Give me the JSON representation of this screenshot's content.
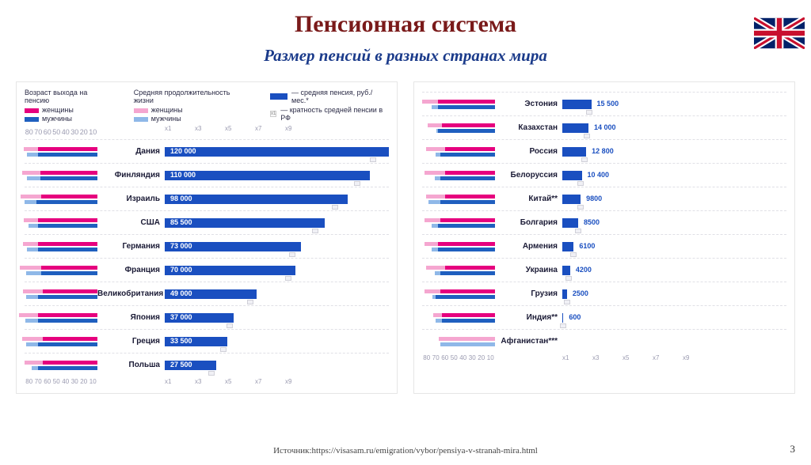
{
  "title": {
    "text": "Пенсионная система",
    "color": "#7a1a1a",
    "fontsize": 30
  },
  "subtitle": {
    "text": "Размер пенсий в разных странах мира",
    "color": "#1a3a8a",
    "fontsize": 21
  },
  "flag": {
    "name": "uk-flag",
    "bg": "#012169",
    "red": "#C8102E",
    "white": "#ffffff"
  },
  "colors": {
    "women_dark": "#e6007e",
    "women_light": "#f5a6d0",
    "men_dark": "#1f5fbf",
    "men_light": "#8fb8e8",
    "pension_bar": "#1a4fc0",
    "panel_border": "#e6e6e6",
    "mult_box": "#f0f0f5",
    "axis_text": "#9a9ab0"
  },
  "legend": {
    "age_title": "Возраст выхода на пенсию",
    "life_title": "Средняя продолжительность жизни",
    "women": "женщины",
    "men": "мужчины",
    "pension": "— средняя пенсия, руб./мес.*",
    "mult": "— кратность средней пенсии в РФ"
  },
  "age_axis": [
    "80",
    "70",
    "60",
    "50",
    "40",
    "30",
    "20",
    "10"
  ],
  "mult_axis": [
    "x1",
    "x3",
    "x5",
    "x7",
    "x9"
  ],
  "age_max": 80,
  "left_panel": {
    "pension_max": 120000,
    "rows": [
      {
        "country": "Дания",
        "pension": 120000,
        "label": "120 000",
        "mult": 9.3,
        "w_ret": 65,
        "m_ret": 65,
        "w_life": 81,
        "m_life": 77
      },
      {
        "country": "Финляндия",
        "pension": 110000,
        "label": "110 000",
        "mult": 8.6,
        "w_ret": 63,
        "m_ret": 63,
        "w_life": 83,
        "m_life": 77
      },
      {
        "country": "Израиль",
        "pension": 98000,
        "label": "98 000",
        "mult": 7.6,
        "w_ret": 62,
        "m_ret": 67,
        "w_life": 84,
        "m_life": 80
      },
      {
        "country": "США",
        "pension": 85500,
        "label": "85 500",
        "mult": 6.7,
        "w_ret": 65,
        "m_ret": 65,
        "w_life": 81,
        "m_life": 76
      },
      {
        "country": "Германия",
        "pension": 73000,
        "label": "73 000",
        "mult": 5.7,
        "w_ret": 65,
        "m_ret": 65,
        "w_life": 82,
        "m_life": 77
      },
      {
        "country": "Франция",
        "pension": 70000,
        "label": "70 000",
        "mult": 5.5,
        "w_ret": 62,
        "m_ret": 62,
        "w_life": 85,
        "m_life": 78
      },
      {
        "country": "Великобритания",
        "pension": 49000,
        "label": "49 000",
        "mult": 3.8,
        "w_ret": 60,
        "m_ret": 65,
        "w_life": 82,
        "m_life": 78
      },
      {
        "country": "Япония",
        "pension": 37000,
        "label": "37 000",
        "mult": 2.9,
        "w_ret": 65,
        "m_ret": 65,
        "w_life": 86,
        "m_life": 79
      },
      {
        "country": "Греция",
        "pension": 33500,
        "label": "33 500",
        "mult": 2.6,
        "w_ret": 60,
        "m_ret": 65,
        "w_life": 83,
        "m_life": 78
      },
      {
        "country": "Польша",
        "pension": 27500,
        "label": "27 500",
        "mult": 2.1,
        "w_ret": 60,
        "m_ret": 65,
        "w_life": 80,
        "m_life": 72
      }
    ]
  },
  "right_panel": {
    "pension_max": 120000,
    "rows": [
      {
        "country": "Эстония",
        "pension": 15500,
        "label": "15 500",
        "mult": 1.2,
        "w_ret": 63,
        "m_ret": 63,
        "w_life": 80,
        "m_life": 70
      },
      {
        "country": "Казахстан",
        "pension": 14000,
        "label": "14 000",
        "mult": 1.1,
        "w_ret": 58,
        "m_ret": 63,
        "w_life": 74,
        "m_life": 64
      },
      {
        "country": "Россия",
        "pension": 12800,
        "label": "12 800",
        "mult": 1.0,
        "w_ret": 55,
        "m_ret": 60,
        "w_life": 76,
        "m_life": 65
      },
      {
        "country": "Белоруссия",
        "pension": 10400,
        "label": "10 400",
        "mult": 0.8,
        "w_ret": 55,
        "m_ret": 60,
        "w_life": 77,
        "m_life": 66
      },
      {
        "country": "Китай**",
        "pension": 9800,
        "label": "9800",
        "mult": 0.8,
        "w_ret": 55,
        "m_ret": 60,
        "w_life": 76,
        "m_life": 73
      },
      {
        "country": "Болгария",
        "pension": 8500,
        "label": "8500",
        "mult": 0.7,
        "w_ret": 60,
        "m_ret": 63,
        "w_life": 77,
        "m_life": 70
      },
      {
        "country": "Армения",
        "pension": 6100,
        "label": "6100",
        "mult": 0.5,
        "w_ret": 63,
        "m_ret": 63,
        "w_life": 77,
        "m_life": 70
      },
      {
        "country": "Украина",
        "pension": 4200,
        "label": "4200",
        "mult": 0.3,
        "w_ret": 55,
        "m_ret": 60,
        "w_life": 76,
        "m_life": 66
      },
      {
        "country": "Грузия",
        "pension": 2500,
        "label": "2500",
        "mult": 0.2,
        "w_ret": 60,
        "m_ret": 65,
        "w_life": 77,
        "m_life": 69
      },
      {
        "country": "Индия**",
        "pension": 600,
        "label": "600",
        "mult": 0.05,
        "w_ret": 58,
        "m_ret": 58,
        "w_life": 68,
        "m_life": 65
      },
      {
        "country": "Афганистан***",
        "pension": 0,
        "label": "",
        "mult": 0,
        "w_ret": 0,
        "m_ret": 0,
        "w_life": 62,
        "m_life": 60
      }
    ]
  },
  "footer": {
    "prefix": "Источник:",
    "url": "https://visasam.ru/emigration/vybor/pensiya-v-stranah-mira.html"
  },
  "page_number": "3"
}
